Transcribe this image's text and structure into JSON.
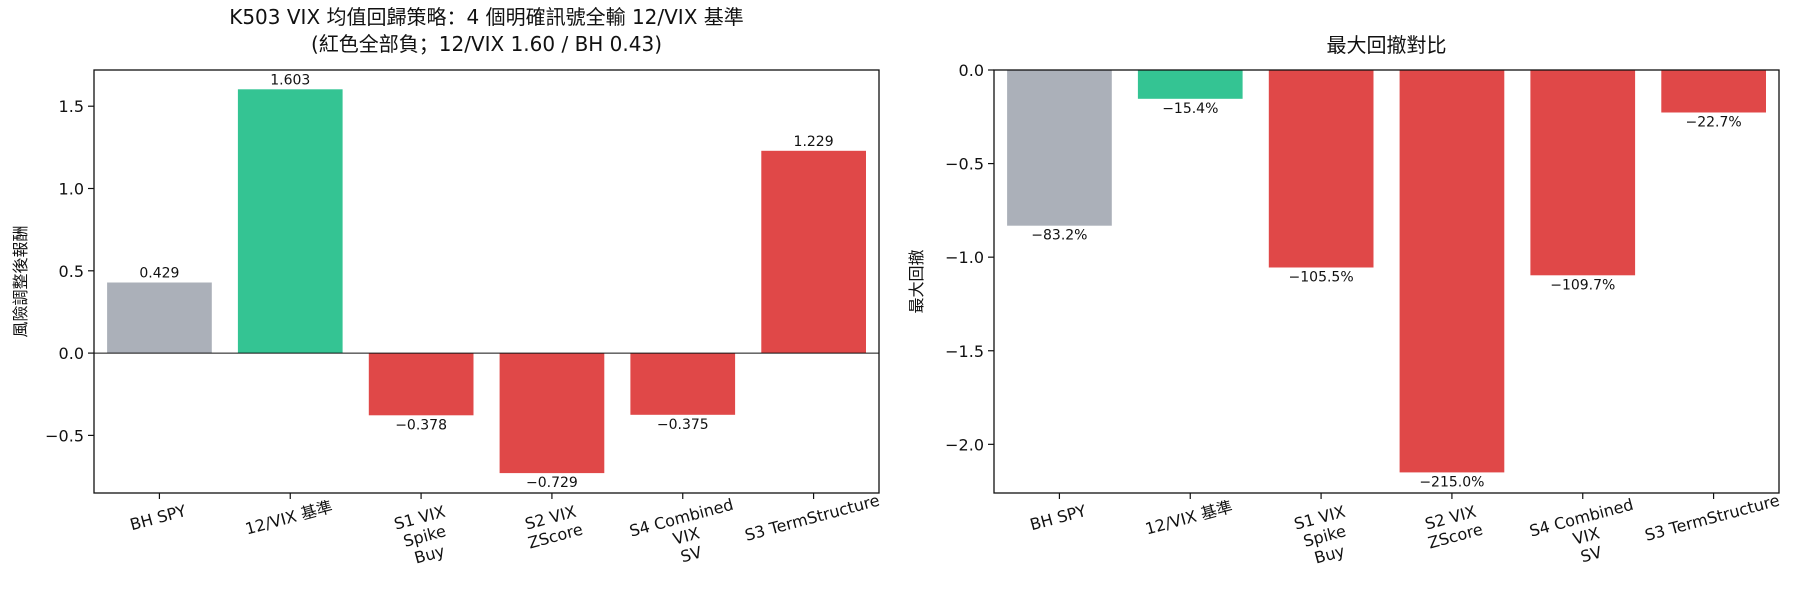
{
  "colors": {
    "baseline_gray": "#abb0b9",
    "benchmark_green": "#34c493",
    "loss_red": "#e04848"
  },
  "chart_data": [
    {
      "type": "bar",
      "title": "K503 VIX 均值回歸策略：4 個明確訊號全輸 12/VIX 基準",
      "subtitle": "(紅色全部負；12/VIX 1.60 / BH 0.43)",
      "xlabel": "",
      "ylabel": "風險調整後報酬",
      "categories": [
        [
          "BH SPY"
        ],
        [
          "12/VIX 基準"
        ],
        [
          "S1 VIX",
          "Spike",
          "Buy"
        ],
        [
          "S2 VIX",
          "ZScore"
        ],
        [
          "S4 Combined",
          "VIX",
          "SV"
        ],
        [
          "S3 TermStructure"
        ]
      ],
      "values": [
        0.429,
        1.603,
        -0.378,
        -0.729,
        -0.375,
        1.229
      ],
      "labels": [
        "0.429",
        "1.603",
        "−0.378",
        "−0.729",
        "−0.375",
        "1.229"
      ],
      "bar_colors": [
        "gray",
        "green",
        "red",
        "red",
        "red",
        "red"
      ],
      "ylim": [
        -0.85,
        1.72
      ],
      "yticks": [
        -0.5,
        0.0,
        0.5,
        1.0,
        1.5
      ],
      "ytick_labels": [
        "−0.5",
        "0.0",
        "0.5",
        "1.0",
        "1.5"
      ],
      "zero_line": true,
      "grid": false
    },
    {
      "type": "bar",
      "title": "最大回撤對比",
      "subtitle": "",
      "xlabel": "",
      "ylabel": "最大回撤",
      "categories": [
        [
          "BH SPY"
        ],
        [
          "12/VIX 基準"
        ],
        [
          "S1 VIX",
          "Spike",
          "Buy"
        ],
        [
          "S2 VIX",
          "ZScore"
        ],
        [
          "S4 Combined",
          "VIX",
          "SV"
        ],
        [
          "S3 TermStructure"
        ]
      ],
      "values": [
        -0.832,
        -0.154,
        -1.055,
        -2.15,
        -1.097,
        -0.227
      ],
      "labels": [
        "−83.2%",
        "−15.4%",
        "−105.5%",
        "−215.0%",
        "−109.7%",
        "−22.7%"
      ],
      "bar_colors": [
        "gray",
        "green",
        "red",
        "red",
        "red",
        "red"
      ],
      "ylim": [
        -2.26,
        0.0
      ],
      "yticks": [
        -2.0,
        -1.5,
        -1.0,
        -0.5,
        0.0
      ],
      "ytick_labels": [
        "−2.0",
        "−1.5",
        "−1.0",
        "−0.5",
        "0.0"
      ],
      "zero_line": false,
      "grid": false
    }
  ]
}
